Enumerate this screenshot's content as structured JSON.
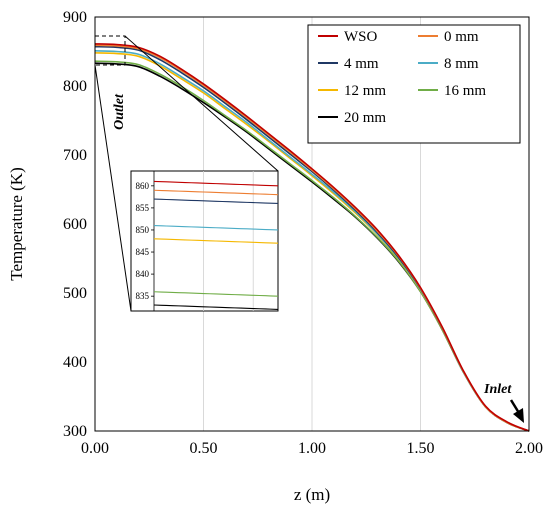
{
  "chart_data": {
    "type": "line",
    "xlabel": "z (m)",
    "ylabel": "Temperature  (K)",
    "xlim": [
      0,
      2
    ],
    "ylim": [
      300,
      900
    ],
    "x_ticks": [
      "0.00",
      "0.50",
      "1.00",
      "1.50",
      "2.00"
    ],
    "y_ticks": [
      "300",
      "400",
      "500",
      "600",
      "700",
      "800",
      "900"
    ],
    "grid": "vertical",
    "legend_position": "top-right",
    "x": [
      0,
      0.1,
      0.2,
      0.3,
      0.4,
      0.5,
      0.6,
      0.7,
      0.8,
      0.9,
      1.0,
      1.1,
      1.2,
      1.3,
      1.4,
      1.5,
      1.6,
      1.7,
      1.8,
      1.9,
      2.0
    ],
    "series": [
      {
        "name": "WSO",
        "color": "#c00000",
        "values": [
          861,
          860,
          856,
          843,
          824,
          803,
          780,
          756,
          731,
          706,
          680,
          653,
          624,
          592,
          554,
          508,
          451,
          386,
          336,
          313,
          300
        ]
      },
      {
        "name": "0 mm",
        "color": "#ed7d31",
        "values": [
          859,
          858,
          854,
          841,
          822,
          801,
          778,
          754,
          729,
          704,
          678,
          651,
          622,
          590,
          553,
          507,
          450,
          385,
          335,
          312,
          300
        ]
      },
      {
        "name": "4 mm",
        "color": "#1f3864",
        "values": [
          857,
          856,
          852,
          838,
          819,
          798,
          775,
          751,
          726,
          701,
          676,
          649,
          620,
          588,
          551,
          506,
          449,
          385,
          335,
          312,
          300
        ]
      },
      {
        "name": "8 mm",
        "color": "#4bacc6",
        "values": [
          851,
          850,
          846,
          832,
          813,
          793,
          770,
          747,
          722,
          697,
          672,
          646,
          618,
          586,
          550,
          505,
          449,
          384,
          335,
          312,
          300
        ]
      },
      {
        "name": "12 mm",
        "color": "#f5b800",
        "values": [
          848,
          847,
          843,
          829,
          810,
          790,
          767,
          744,
          720,
          695,
          670,
          644,
          616,
          585,
          549,
          504,
          448,
          384,
          335,
          312,
          300
        ]
      },
      {
        "name": "16 mm",
        "color": "#70ad47",
        "values": [
          836,
          835,
          831,
          817,
          799,
          779,
          757,
          735,
          711,
          687,
          663,
          638,
          611,
          581,
          546,
          502,
          447,
          384,
          335,
          312,
          300
        ]
      },
      {
        "name": "20 mm",
        "color": "#000000",
        "values": [
          833,
          832,
          828,
          814,
          796,
          776,
          755,
          733,
          709,
          685,
          661,
          636,
          610,
          580,
          545,
          502,
          447,
          384,
          335,
          312,
          300
        ]
      }
    ],
    "inset": {
      "y_ticks": [
        "835",
        "840",
        "845",
        "850",
        "855",
        "860"
      ],
      "ylim": [
        833,
        862
      ],
      "xlim": [
        0,
        0.1
      ]
    },
    "annotations": [
      "Outlet",
      "Inlet"
    ]
  }
}
